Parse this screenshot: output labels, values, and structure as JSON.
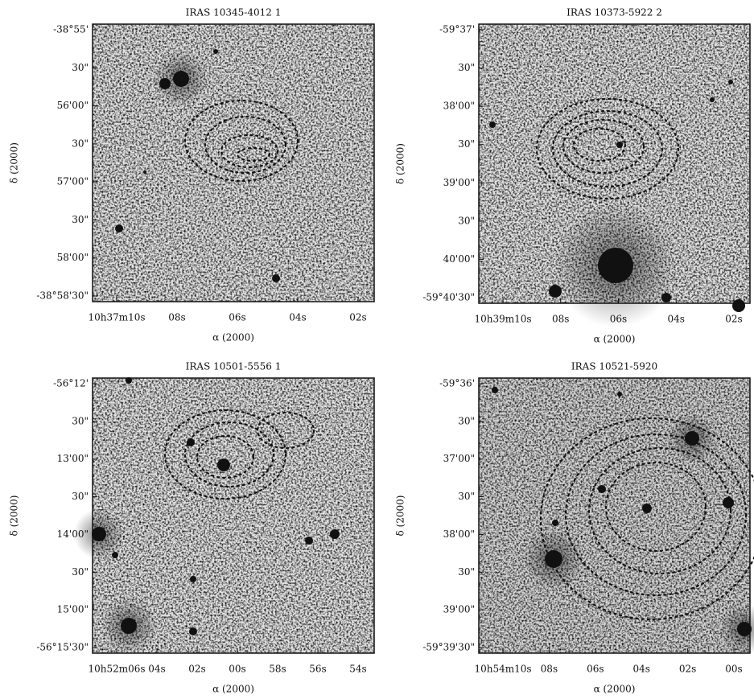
{
  "figure": {
    "panels": [
      {
        "title": "IRAS 10345-4012 1",
        "x_label": "α (2000)",
        "y_label": "δ (2000)",
        "x_ticks": [
          "10h37m10s",
          "08s",
          "06s",
          "04s",
          "02s"
        ],
        "y_ticks": [
          "-38°55'",
          "30\"",
          "56'00\"",
          "30\"",
          "57'00\"",
          "30\"",
          "58'00\"",
          "-38°58'30\""
        ]
      },
      {
        "title": "IRAS 10373-5922 2",
        "x_label": "α (2000)",
        "y_label": "δ (2000)",
        "x_ticks": [
          "10h39m10s",
          "08s",
          "06s",
          "04s",
          "02s"
        ],
        "y_ticks": [
          "-59°37'",
          "30\"",
          "38'00\"",
          "30\"",
          "39'00\"",
          "30\"",
          "40'00\"",
          "-59°40'30\""
        ]
      },
      {
        "title": "IRAS 10501-5556 1",
        "x_label": "α (2000)",
        "y_label": "δ (2000)",
        "x_ticks": [
          "10h52m06s",
          "04s",
          "02s",
          "00s",
          "58s",
          "56s",
          "54s"
        ],
        "y_ticks": [
          "-56°12'",
          "30\"",
          "13'00\"",
          "30\"",
          "14'00\"",
          "30\"",
          "15'00\"",
          "-56°15'30\""
        ]
      },
      {
        "title": "IRAS 10521-5920",
        "x_label": "α (2000)",
        "y_label": "δ (2000)",
        "x_ticks": [
          "10h54m10s",
          "08s",
          "06s",
          "04s",
          "02s",
          "00s"
        ],
        "y_ticks": [
          "-59°36'",
          "30\"",
          "37'00\"",
          "30\"",
          "38'00\"",
          "30\"",
          "39'00\"",
          "-59°39'30\""
        ]
      }
    ]
  }
}
